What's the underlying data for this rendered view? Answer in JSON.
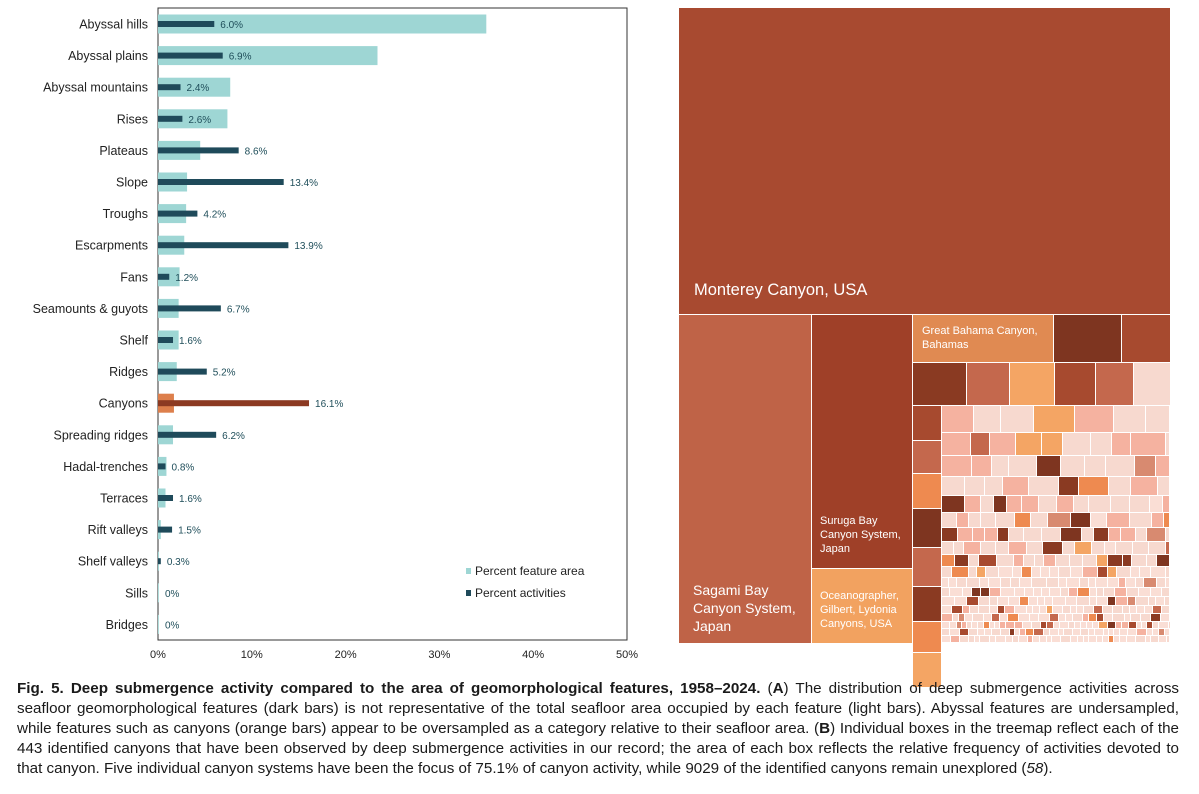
{
  "panel_a": {
    "chart_data": {
      "type": "bar",
      "categories": [
        "Abyssal hills",
        "Abyssal plains",
        "Abyssal mountains",
        "Rises",
        "Plateaus",
        "Slope",
        "Troughs",
        "Escarpments",
        "Fans",
        "Seamounts & guyots",
        "Shelf",
        "Ridges",
        "Canyons",
        "Spreading ridges",
        "Hadal-trenches",
        "Terraces",
        "Rift valleys",
        "Shelf valleys",
        "Sills",
        "Bridges"
      ],
      "series": [
        {
          "name": "Percent feature area",
          "values": [
            35.0,
            23.4,
            7.7,
            7.4,
            4.5,
            3.1,
            3.0,
            2.8,
            2.3,
            2.2,
            2.2,
            2.0,
            1.7,
            1.6,
            0.9,
            0.8,
            0.3,
            0.1,
            0.02,
            0.01
          ]
        },
        {
          "name": "Percent activities",
          "values": [
            6.0,
            6.9,
            2.4,
            2.6,
            8.6,
            13.4,
            4.2,
            13.9,
            1.2,
            6.7,
            1.6,
            5.2,
            16.1,
            6.2,
            0.8,
            1.6,
            1.5,
            0.3,
            0,
            0
          ]
        }
      ],
      "activity_labels": [
        "6.0%",
        "6.9%",
        "2.4%",
        "2.6%",
        "8.6%",
        "13.4%",
        "4.2%",
        "13.9%",
        "1.2%",
        "6.7%",
        "1.6%",
        "5.2%",
        "16.1%",
        "6.2%",
        "0.8%",
        "1.6%",
        "1.5%",
        "0.3%",
        "0%",
        "0%"
      ],
      "highlight_category": "Canyons",
      "xlim": [
        0,
        50
      ],
      "xticks": [
        "0%",
        "10%",
        "20%",
        "30%",
        "40%",
        "50%"
      ],
      "legend_position": "bottom-right",
      "colors": {
        "feature_area": "#9ed6d4",
        "activities": "#1f4a5a",
        "canyon_area": "#dd7f4c",
        "canyon_activities": "#8c3a22",
        "value_label": "#1f4e5a"
      }
    }
  },
  "panel_b": {
    "labels": {
      "monterey": "Monterey Canyon, USA",
      "sagami": "Sagami Bay Canyon System, Japan",
      "suruga": "Suruga Bay Canyon System, Japan",
      "bahama": "Great Bahama Canyon, Bahamas",
      "oceanographer": "Oceanographer, Gilbert, Lydonia Canyons, USA"
    },
    "colors": {
      "monterey": "#a84a30",
      "sagami": "#bf6347",
      "suruga": "#9f4028",
      "bahama": "#e08a52",
      "oceanographer": "#f2a260",
      "palette": [
        "#8a3a22",
        "#c4684d",
        "#f4a564",
        "#f7d9cf",
        "#a74a2f",
        "#ee8a50",
        "#f5b2a0",
        "#faded5",
        "#7e3520",
        "#d88a70"
      ],
      "background": "#f7d6cb"
    }
  },
  "caption": {
    "fig_label": "Fig. 5. Deep submergence activity compared to the area of geomorphological features, 1958–2024.",
    "paren_open": " (",
    "a_letter": "A",
    "text_a": ") The distribution of deep submergence activities across seafloor geomorphological features (dark bars) is not representative of the total seafloor area occupied by each feature (light bars). Abyssal features are undersampled, while features such as canyons (orange bars) appear to be oversampled as a category relative to their seafloor area. (",
    "b_letter": "B",
    "text_b": ") Individual boxes in the treemap reflect each of the 443 identified canyons that have been observed by deep submergence activities in our record; the area of each box reflects the relative frequency of activities devoted to that canyon. Five individual canyon systems have been the focus of 75.1% of canyon activity, while 9029 of the identified canyons remain unexplored (",
    "ref": "58",
    "close": ")."
  }
}
